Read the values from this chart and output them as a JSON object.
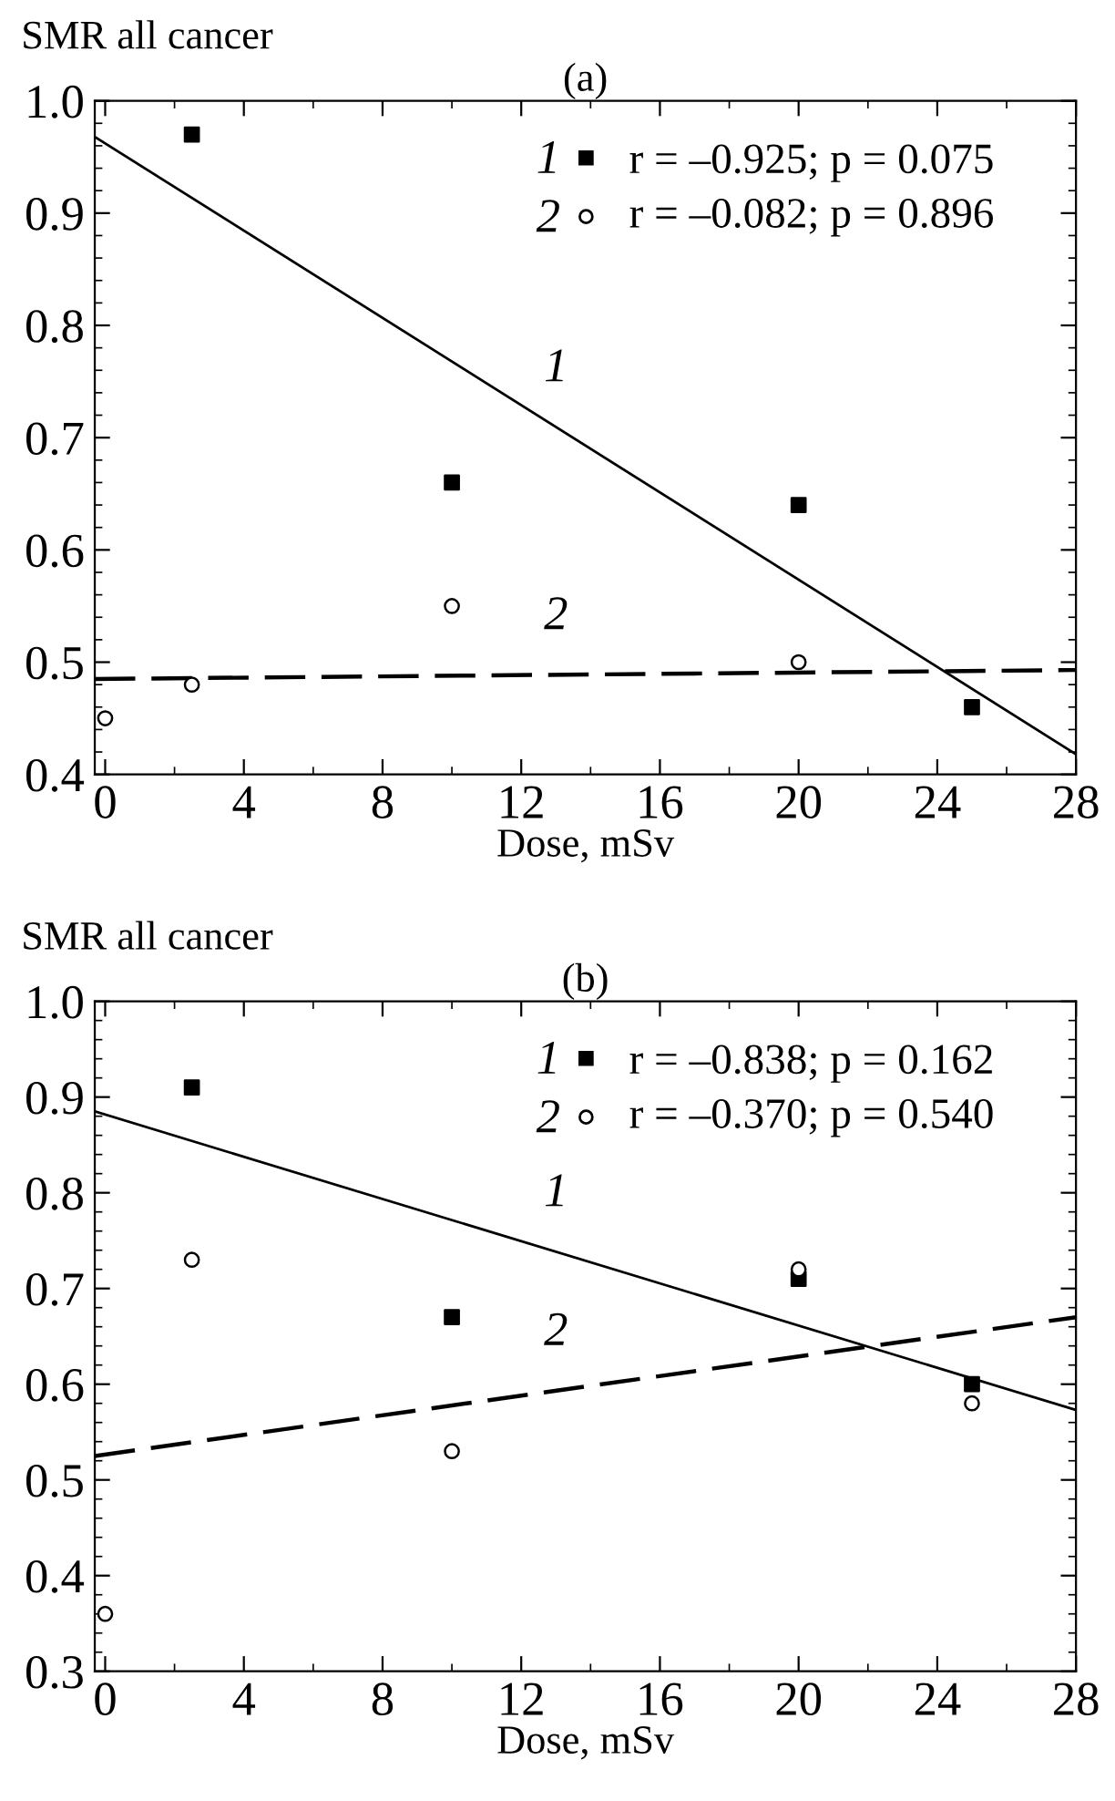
{
  "chart_data": [
    {
      "type": "scatter",
      "title": "(a)",
      "ylabel": "SMR all cancer",
      "xlabel": "Dose, mSv",
      "xlim": [
        -0.3,
        28
      ],
      "xticks": [
        0,
        4,
        8,
        12,
        16,
        20,
        24,
        28
      ],
      "ylim": [
        0.4,
        1.0
      ],
      "yticks": [
        {
          "value": 0.4,
          "label": "0.4"
        },
        {
          "value": 0.5,
          "label": "0.5"
        },
        {
          "value": 0.6,
          "label": "0.6"
        },
        {
          "value": 0.7,
          "label": "0.7"
        },
        {
          "value": 0.8,
          "label": "0.8"
        },
        {
          "value": 0.9,
          "label": "0.9"
        },
        {
          "value": 1.0,
          "label": "1.0"
        }
      ],
      "grid": false,
      "legend": "top right",
      "series": [
        {
          "name": "1",
          "marker": "square",
          "color": "#000000",
          "x": [
            2.5,
            10,
            20,
            25
          ],
          "values": [
            0.97,
            0.66,
            0.64,
            0.46
          ]
        },
        {
          "name": "2",
          "marker": "circle",
          "color": "#000000",
          "x": [
            0,
            2.5,
            10,
            20
          ],
          "values": [
            0.45,
            0.48,
            0.55,
            0.5
          ]
        },
        {
          "type": "line",
          "line_style": "solid",
          "color": "#000000",
          "x": [
            -0.3,
            28
          ],
          "values": [
            0.968,
            0.418
          ]
        },
        {
          "type": "line",
          "line_style": "dashed",
          "color": "#000000",
          "x": [
            -0.3,
            28
          ],
          "values": [
            0.485,
            0.493
          ]
        }
      ],
      "annotations": [
        "r = –0.925; p = 0.075",
        "r = –0.082; p = 0.896",
        "1",
        "2"
      ]
    },
    {
      "type": "scatter",
      "title": "(b)",
      "ylabel": "SMR all cancer",
      "xlabel": "Dose, mSv",
      "xlim": [
        -0.3,
        28
      ],
      "xticks": [
        0,
        4,
        8,
        12,
        16,
        20,
        24,
        28
      ],
      "ylim": [
        0.3,
        1.0
      ],
      "yticks": [
        {
          "value": 0.3,
          "label": "0.3"
        },
        {
          "value": 0.4,
          "label": "0.4"
        },
        {
          "value": 0.5,
          "label": "0.5"
        },
        {
          "value": 0.6,
          "label": "0.6"
        },
        {
          "value": 0.7,
          "label": "0.7"
        },
        {
          "value": 0.8,
          "label": "0.8"
        },
        {
          "value": 0.9,
          "label": "0.9"
        },
        {
          "value": 1.0,
          "label": "1.0"
        }
      ],
      "grid": false,
      "legend": "top right",
      "series": [
        {
          "name": "1",
          "marker": "square",
          "color": "#000000",
          "x": [
            2.5,
            10,
            20,
            25
          ],
          "values": [
            0.91,
            0.67,
            0.71,
            0.6
          ]
        },
        {
          "name": "2",
          "marker": "circle",
          "color": "#000000",
          "x": [
            0,
            2.5,
            10,
            20,
            25
          ],
          "values": [
            0.36,
            0.73,
            0.53,
            0.72,
            0.58
          ]
        },
        {
          "type": "line",
          "line_style": "solid",
          "color": "#000000",
          "x": [
            -0.3,
            28
          ],
          "values": [
            0.885,
            0.573
          ]
        },
        {
          "type": "line",
          "line_style": "dashed",
          "color": "#000000",
          "x": [
            -0.3,
            28
          ],
          "values": [
            0.525,
            0.67
          ]
        }
      ],
      "annotations": [
        "r = –0.838; p = 0.162",
        "r = –0.370; p = 0.540",
        "1",
        "2"
      ]
    }
  ]
}
